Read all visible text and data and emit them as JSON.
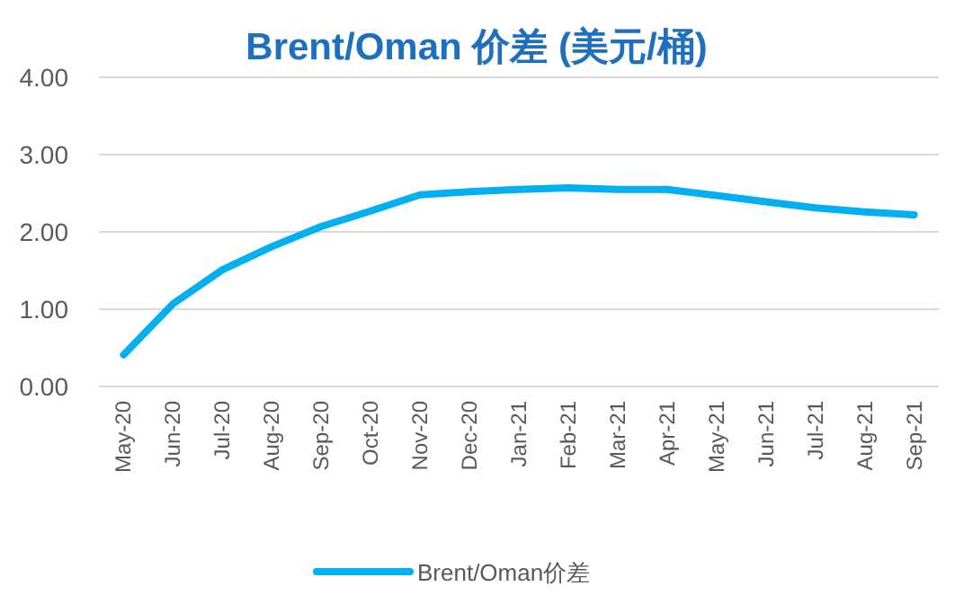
{
  "chart_data": {
    "type": "line",
    "title": "Brent/Oman 价差 (美元/桶)",
    "categories": [
      "May-20",
      "Jun-20",
      "Jul-20",
      "Aug-20",
      "Sep-20",
      "Oct-20",
      "Nov-20",
      "Dec-20",
      "Jan-21",
      "Feb-21",
      "Mar-21",
      "Apr-21",
      "May-21",
      "Jun-21",
      "Jul-21",
      "Aug-21",
      "Sep-21"
    ],
    "series": [
      {
        "name": "Brent/Oman价差",
        "color": "#00b0f0",
        "values": [
          0.41,
          1.07,
          1.51,
          1.81,
          2.07,
          2.27,
          2.48,
          2.52,
          2.55,
          2.57,
          2.55,
          2.55,
          2.47,
          2.39,
          2.31,
          2.26,
          2.22
        ]
      }
    ],
    "ylim": [
      0,
      4
    ],
    "yticks": [
      {
        "value": 0,
        "label": "0.00"
      },
      {
        "value": 1,
        "label": "1.00"
      },
      {
        "value": 2,
        "label": "2.00"
      },
      {
        "value": 3,
        "label": "3.00"
      },
      {
        "value": 4,
        "label": "4.00"
      }
    ],
    "grid": "y",
    "legend": "bottom",
    "marker": "none",
    "line_style": "solid"
  }
}
